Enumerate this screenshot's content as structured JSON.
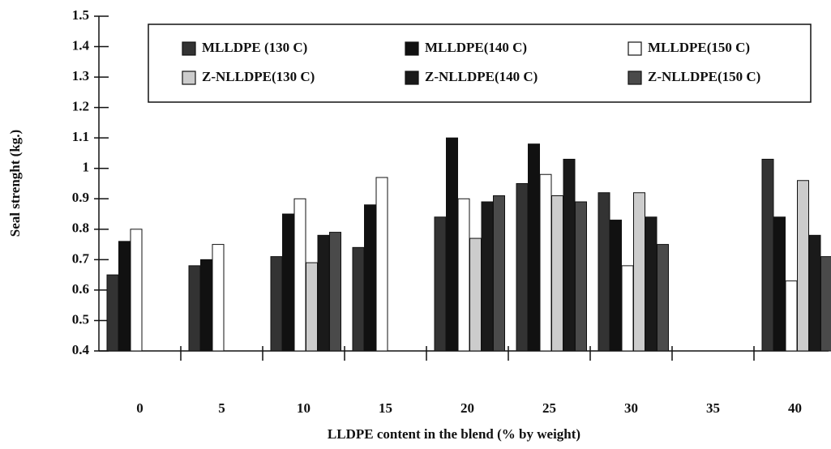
{
  "chart_data": {
    "type": "bar",
    "x_label": "LLDPE content in the blend (% by weight)",
    "y_label": "Seal strenght (kg.)",
    "categories": [
      "0",
      "5",
      "10",
      "15",
      "20",
      "25",
      "30",
      "35",
      "40"
    ],
    "series": [
      {
        "name": "MLLDPE (130 C)",
        "color": "#333333",
        "values": [
          0.65,
          0.68,
          0.71,
          0.74,
          0.84,
          0.95,
          0.92,
          null,
          1.03
        ]
      },
      {
        "name": "MLLDPE(140 C)",
        "color": "#111111",
        "values": [
          0.76,
          0.7,
          0.85,
          0.88,
          1.1,
          1.08,
          0.83,
          null,
          0.84
        ]
      },
      {
        "name": "MLLDPE(150 C)",
        "color": "#ffffff",
        "values": [
          0.8,
          0.75,
          0.9,
          0.97,
          0.9,
          0.98,
          0.68,
          null,
          0.63
        ]
      },
      {
        "name": "Z-NLLDPE(130 C)",
        "color": "#cccccc",
        "values": [
          null,
          null,
          0.69,
          null,
          0.77,
          0.91,
          0.92,
          null,
          0.96
        ]
      },
      {
        "name": "Z-NLLDPE(140 C)",
        "color": "#1a1a1a",
        "values": [
          null,
          null,
          0.78,
          null,
          0.89,
          1.03,
          0.84,
          null,
          0.78
        ]
      },
      {
        "name": "Z-NLLDPE(150 C)",
        "color": "#4a4a4a",
        "values": [
          null,
          null,
          0.79,
          null,
          0.91,
          0.89,
          0.75,
          null,
          0.71
        ]
      }
    ],
    "ylim": [
      0.4,
      1.5
    ],
    "yticks": [
      0.4,
      0.5,
      0.6,
      0.7,
      0.8,
      0.9,
      1,
      1.1,
      1.2,
      1.3,
      1.4,
      1.5
    ]
  }
}
